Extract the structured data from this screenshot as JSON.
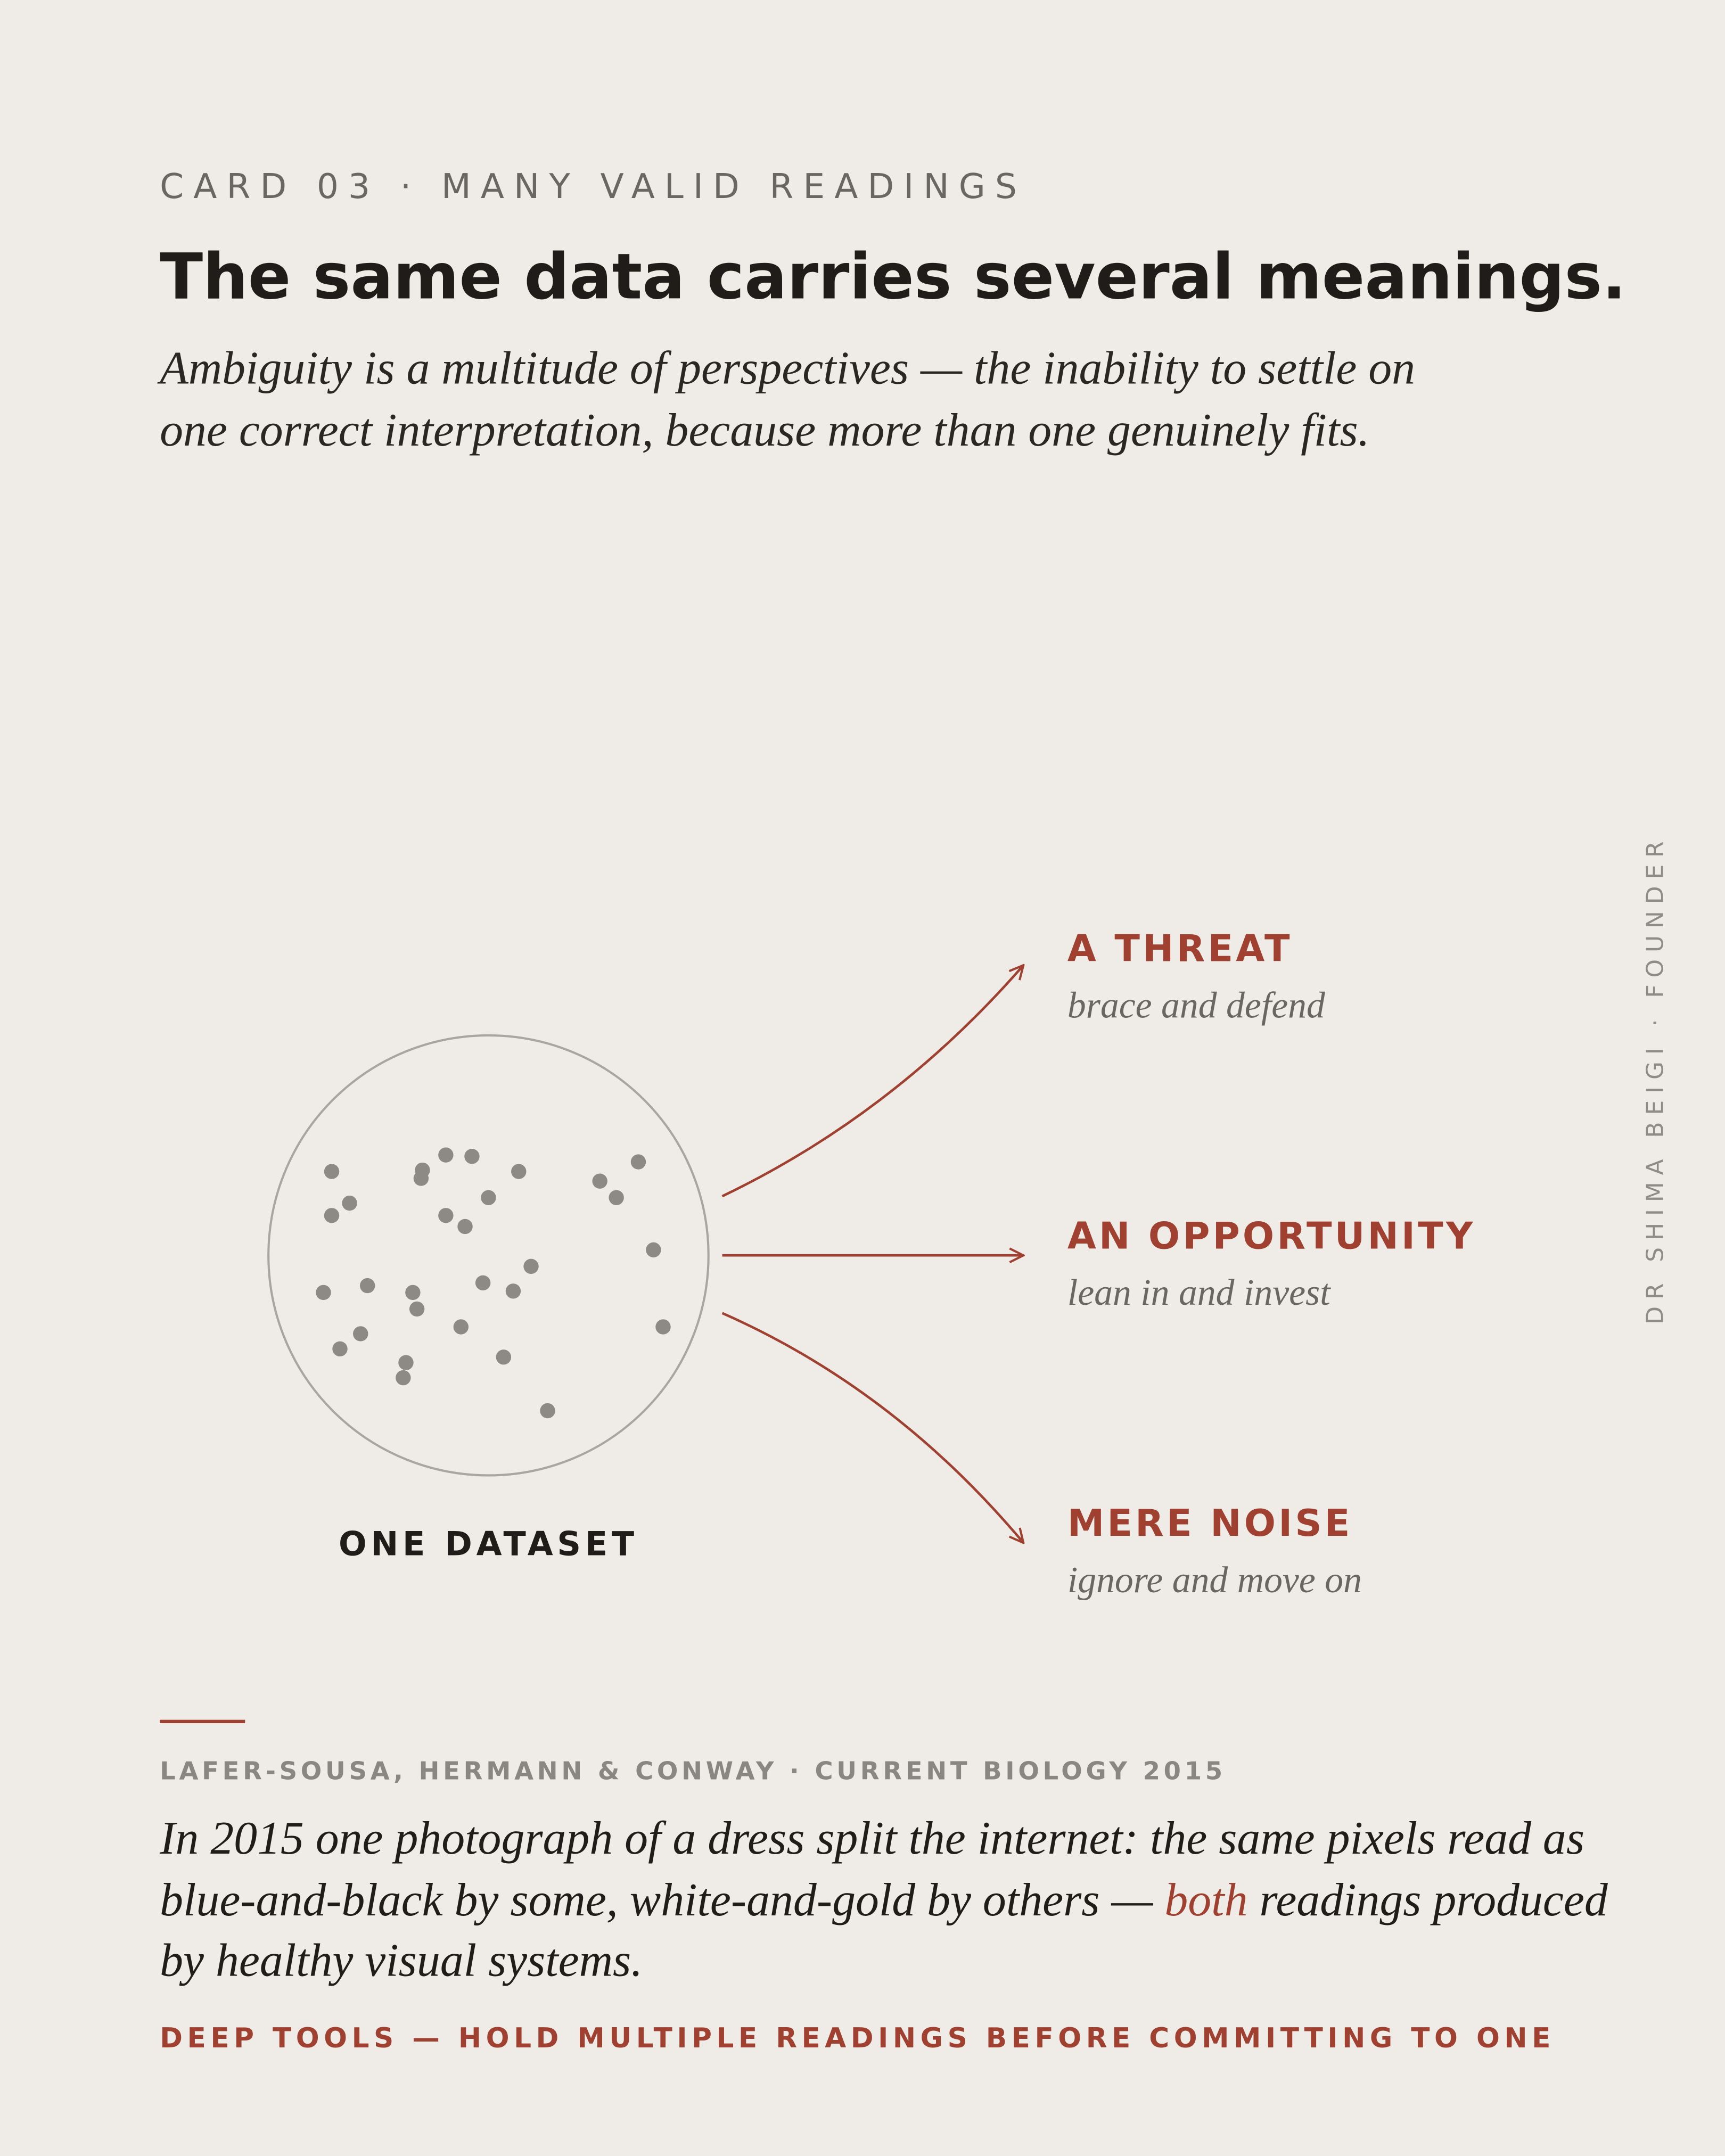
{
  "header": {
    "eyebrow": "CARD 03 · MANY VALID READINGS",
    "title": "The same data carries several meanings.",
    "subtitle_lines": [
      "Ambiguity is a multitude of perspectives — the inability to settle on",
      "one correct interpretation, because more than one genuinely fits."
    ]
  },
  "diagram": {
    "source_label": "ONE DATASET",
    "readings": [
      {
        "label": "A THREAT",
        "note": "brace and defend"
      },
      {
        "label": "AN OPPORTUNITY",
        "note": "lean in and invest"
      },
      {
        "label": "MERE NOISE",
        "note": "ignore and move on"
      }
    ]
  },
  "side_credit": "DR SHIMA BEIGI · FOUNDER",
  "citation": "LAFER-SOUSA, HERMANN & CONWAY · CURRENT BIOLOGY 2015",
  "body": {
    "line1": "In 2015 one photograph of a dress split the internet: the same pixels read as",
    "line2_start": "blue-and-black by some, white-and-gold by others — ",
    "emphasis": "both",
    "line2_end": " readings produced",
    "line3": "by healthy visual systems."
  },
  "footer": "DEEP TOOLS — HOLD MULTIPLE READINGS BEFORE COMMITTING TO ONE"
}
